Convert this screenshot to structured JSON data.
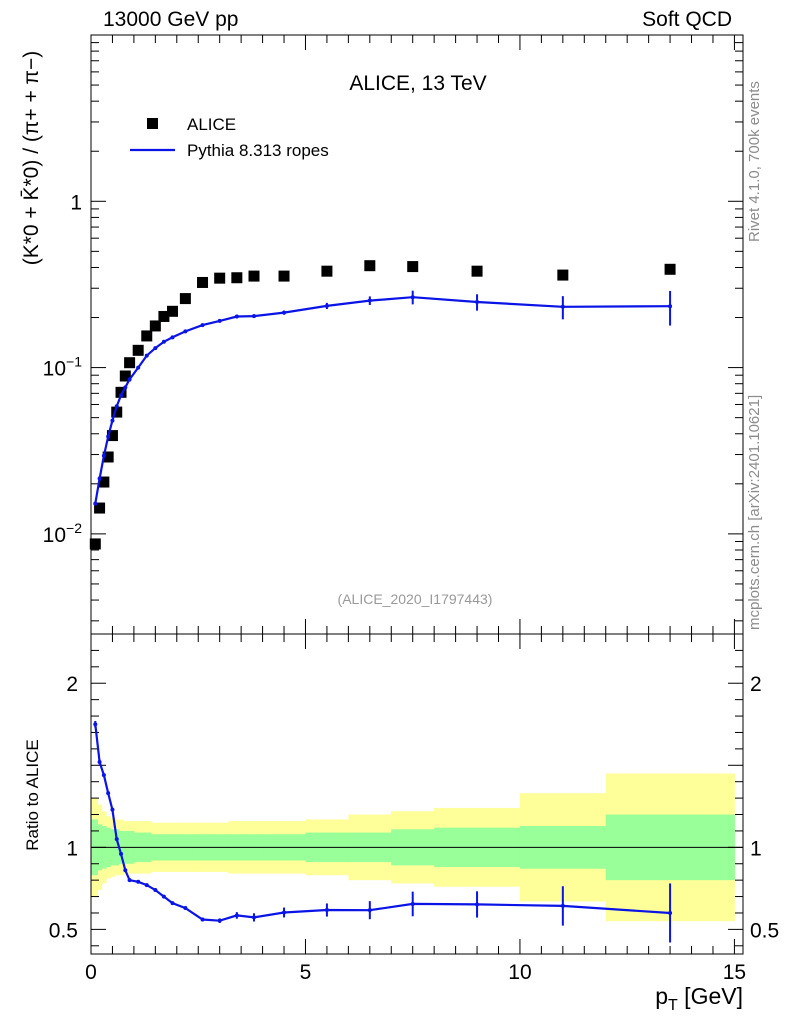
{
  "header": {
    "left": "13000 GeV pp",
    "right": "Soft QCD"
  },
  "side_labels": {
    "rivet": "Rivet 4.1.0,  700k events",
    "mcplots": "mcplots.cern.ch [arXiv:2401.10621]"
  },
  "colors": {
    "data": "#000000",
    "mc": "#0a14e6",
    "band_inner": "#99ff99",
    "band_outer": "#ffff99"
  },
  "chart_data": [
    {
      "type": "scatter",
      "panel": "main",
      "title": "ALICE, 13 TeV",
      "analysis_tag": "(ALICE_2020_I1797443)",
      "ylabel": "(K*0 + K̄*0) / (π+ + π−)",
      "yscale": "log",
      "xlim": [
        0,
        15.2
      ],
      "ylim": [
        0.0025,
        10
      ],
      "y_tick_labels": [
        {
          "value": 0.01,
          "mantissa": "10",
          "exponent": "−2"
        },
        {
          "value": 0.1,
          "mantissa": "10",
          "exponent": "−1"
        },
        {
          "value": 1,
          "mantissa": "1",
          "exponent": ""
        }
      ],
      "legend": {
        "position": "top-left",
        "entries": [
          "ALICE",
          "Pythia 8.313 ropes"
        ]
      },
      "series": [
        {
          "name": "ALICE",
          "marker": "square",
          "x": [
            0.1,
            0.2,
            0.3,
            0.4,
            0.5,
            0.6,
            0.7,
            0.8,
            0.9,
            1.1,
            1.3,
            1.5,
            1.7,
            1.9,
            2.2,
            2.6,
            3.0,
            3.4,
            3.8,
            4.5,
            5.5,
            6.5,
            7.5,
            9.0,
            11.0,
            13.5
          ],
          "y": [
            0.0087,
            0.0143,
            0.0205,
            0.029,
            0.039,
            0.054,
            0.071,
            0.089,
            0.107,
            0.127,
            0.155,
            0.178,
            0.203,
            0.218,
            0.26,
            0.325,
            0.345,
            0.347,
            0.355,
            0.355,
            0.38,
            0.41,
            0.405,
            0.38,
            0.36,
            0.39
          ]
        },
        {
          "name": "Pythia 8.313 ropes",
          "marker": "line",
          "x": [
            0.1,
            0.2,
            0.3,
            0.4,
            0.5,
            0.6,
            0.7,
            0.8,
            0.9,
            1.1,
            1.3,
            1.5,
            1.7,
            1.9,
            2.2,
            2.6,
            3.0,
            3.4,
            3.8,
            4.5,
            5.5,
            6.5,
            7.5,
            9.0,
            11.0,
            13.5
          ],
          "y": [
            0.0152,
            0.0215,
            0.0295,
            0.0385,
            0.048,
            0.0585,
            0.068,
            0.076,
            0.085,
            0.1,
            0.118,
            0.131,
            0.143,
            0.152,
            0.165,
            0.18,
            0.191,
            0.203,
            0.204,
            0.214,
            0.235,
            0.253,
            0.265,
            0.248,
            0.232,
            0.234
          ],
          "yerr": [
            0,
            0,
            0,
            0,
            0,
            0,
            0,
            0,
            0,
            0,
            0,
            0,
            0,
            0,
            0,
            0.003,
            0.004,
            0.005,
            0.005,
            0.006,
            0.01,
            0.015,
            0.025,
            0.028,
            0.037,
            0.055
          ]
        }
      ]
    },
    {
      "type": "line",
      "panel": "ratio",
      "ylabel": "Ratio to ALICE",
      "xlabel": "p_T [GeV]",
      "xlim": [
        0,
        15.2
      ],
      "ylim": [
        0.35,
        2.3
      ],
      "x_ticks": [
        0,
        5,
        10,
        15
      ],
      "y_ticks": [
        0.5,
        1,
        2
      ],
      "reference_line": 1,
      "bands": {
        "x_edges": [
          0.0,
          0.15,
          0.25,
          0.35,
          0.45,
          0.55,
          0.65,
          0.75,
          0.85,
          1.0,
          1.2,
          1.4,
          1.6,
          1.8,
          2.0,
          2.4,
          2.8,
          3.2,
          3.6,
          4.0,
          5.0,
          6.0,
          7.0,
          8.0,
          10.0,
          12.0,
          15.0
        ],
        "inner": [
          0.17,
          0.14,
          0.13,
          0.12,
          0.11,
          0.11,
          0.1,
          0.1,
          0.1,
          0.09,
          0.09,
          0.08,
          0.08,
          0.08,
          0.08,
          0.08,
          0.08,
          0.08,
          0.08,
          0.08,
          0.09,
          0.09,
          0.11,
          0.12,
          0.13,
          0.2
        ],
        "outer": [
          0.3,
          0.26,
          0.22,
          0.19,
          0.18,
          0.17,
          0.17,
          0.16,
          0.16,
          0.16,
          0.16,
          0.15,
          0.15,
          0.15,
          0.15,
          0.15,
          0.15,
          0.16,
          0.16,
          0.16,
          0.17,
          0.2,
          0.22,
          0.24,
          0.33,
          0.45
        ]
      },
      "series": [
        {
          "name": "Pythia 8.313 ropes / ALICE",
          "x": [
            0.1,
            0.2,
            0.3,
            0.4,
            0.5,
            0.6,
            0.7,
            0.8,
            0.9,
            1.1,
            1.3,
            1.5,
            1.7,
            1.9,
            2.2,
            2.6,
            3.0,
            3.4,
            3.8,
            4.5,
            5.5,
            6.5,
            7.5,
            9.0,
            11.0,
            13.5
          ],
          "y": [
            1.75,
            1.52,
            1.44,
            1.33,
            1.23,
            1.05,
            0.96,
            0.86,
            0.8,
            0.79,
            0.77,
            0.74,
            0.7,
            0.66,
            0.63,
            0.56,
            0.553,
            0.585,
            0.573,
            0.603,
            0.618,
            0.617,
            0.655,
            0.652,
            0.643,
            0.6
          ],
          "yerr": [
            0.02,
            0.015,
            0.01,
            0.01,
            0.01,
            0.01,
            0.01,
            0.01,
            0.01,
            0.01,
            0.01,
            0.01,
            0.01,
            0.01,
            0.01,
            0.012,
            0.014,
            0.02,
            0.025,
            0.03,
            0.04,
            0.055,
            0.075,
            0.08,
            0.12,
            0.18
          ]
        }
      ]
    }
  ]
}
